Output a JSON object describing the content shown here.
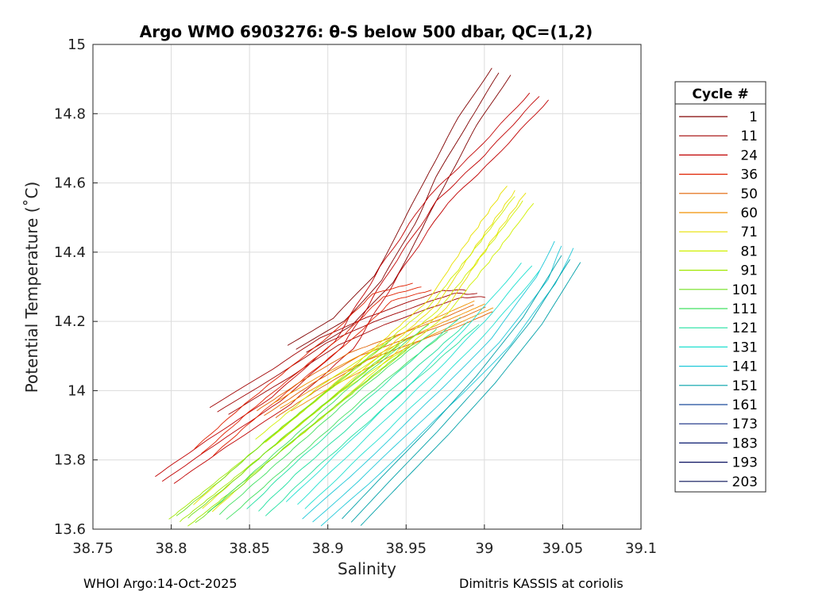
{
  "chart_data": {
    "type": "line",
    "title": "Argo WMO 6903276: θ-S below 500 dbar,  QC=(1,2)",
    "xlabel": "Salinity",
    "ylabel": "Potential Temperature (˚C)",
    "xlim": [
      38.75,
      39.1
    ],
    "ylim": [
      13.6,
      15.0
    ],
    "xticks": [
      "38.75",
      "38.8",
      "38.85",
      "38.9",
      "38.95",
      "39",
      "39.05",
      "39.1"
    ],
    "yticks": [
      "13.6",
      "13.8",
      "14",
      "14.2",
      "14.4",
      "14.6",
      "14.8",
      "15"
    ],
    "grid": true,
    "legend_title": "Cycle #",
    "legend_position": "right-outside",
    "series": [
      {
        "name": "1",
        "color": "#800000",
        "x": [
          38.88,
          38.91,
          38.935,
          38.955,
          38.97,
          38.99,
          39.01
        ],
        "y": [
          14.12,
          14.2,
          14.32,
          14.48,
          14.62,
          14.78,
          14.92
        ]
      },
      {
        "name": "11",
        "color": "#a00000",
        "x": [
          38.83,
          38.87,
          38.9,
          38.93,
          38.96,
          38.98,
          38.995
        ],
        "y": [
          13.94,
          14.05,
          14.14,
          14.2,
          14.25,
          14.28,
          14.28
        ]
      },
      {
        "name": "24",
        "color": "#c00000",
        "x": [
          38.795,
          38.83,
          38.87,
          38.91,
          38.94,
          38.97,
          39.0,
          39.035
        ],
        "y": [
          13.74,
          13.85,
          13.97,
          14.13,
          14.35,
          14.55,
          14.68,
          14.85
        ]
      },
      {
        "name": "36",
        "color": "#e02000",
        "x": [
          38.82,
          38.85,
          38.88,
          38.91,
          38.935,
          38.96
        ],
        "y": [
          13.82,
          13.94,
          14.05,
          14.16,
          14.27,
          14.3
        ]
      },
      {
        "name": "50",
        "color": "#e06000",
        "x": [
          38.86,
          38.89,
          38.92,
          38.95,
          38.98,
          39.0
        ],
        "y": [
          13.93,
          14.02,
          14.1,
          14.15,
          14.2,
          14.24
        ]
      },
      {
        "name": "60",
        "color": "#f09000",
        "x": [
          38.87,
          38.9,
          38.93,
          38.96,
          38.985,
          39.0
        ],
        "y": [
          13.95,
          14.03,
          14.1,
          14.17,
          14.22,
          14.25
        ]
      },
      {
        "name": "71",
        "color": "#e8e000",
        "x": [
          38.82,
          38.86,
          38.9,
          38.94,
          38.97,
          38.995,
          39.02
        ],
        "y": [
          13.66,
          13.82,
          13.97,
          14.13,
          14.25,
          14.42,
          14.58
        ]
      },
      {
        "name": "81",
        "color": "#d0f000",
        "x": [
          38.86,
          38.9,
          38.94,
          38.97,
          39.0,
          39.025
        ],
        "y": [
          13.85,
          14.0,
          14.12,
          14.23,
          14.4,
          14.55
        ]
      },
      {
        "name": "91",
        "color": "#a0e800",
        "x": [
          38.805,
          38.83,
          38.86,
          38.89,
          38.92,
          38.945
        ],
        "y": [
          13.62,
          13.71,
          13.82,
          13.93,
          14.04,
          14.13
        ]
      },
      {
        "name": "101",
        "color": "#70e020",
        "x": [
          38.81,
          38.84,
          38.87,
          38.9,
          38.93,
          38.95
        ],
        "y": [
          13.63,
          13.74,
          13.86,
          13.97,
          14.08,
          14.15
        ]
      },
      {
        "name": "111",
        "color": "#40e060",
        "x": [
          38.83,
          38.86,
          38.89,
          38.92,
          38.95,
          38.97
        ],
        "y": [
          13.64,
          13.76,
          13.88,
          14.0,
          14.11,
          14.18
        ]
      },
      {
        "name": "121",
        "color": "#20e0a0",
        "x": [
          38.855,
          38.88,
          38.91,
          38.94,
          38.97,
          38.99
        ],
        "y": [
          13.65,
          13.76,
          13.88,
          14.0,
          14.12,
          14.2
        ]
      },
      {
        "name": "131",
        "color": "#20e0d0",
        "x": [
          38.88,
          38.91,
          38.94,
          38.97,
          39.0,
          39.03
        ],
        "y": [
          13.67,
          13.8,
          13.93,
          14.06,
          14.2,
          14.36
        ]
      },
      {
        "name": "141",
        "color": "#20c8d8",
        "x": [
          38.89,
          38.92,
          38.95,
          38.98,
          39.01,
          39.04,
          39.05
        ],
        "y": [
          13.62,
          13.74,
          13.87,
          14.0,
          14.14,
          14.32,
          14.42
        ]
      },
      {
        "name": "151",
        "color": "#00a0a8",
        "x": [
          38.915,
          38.94,
          38.97,
          39.0,
          39.03,
          39.055
        ],
        "y": [
          13.62,
          13.74,
          13.88,
          14.03,
          14.2,
          14.38
        ]
      },
      {
        "name": "161",
        "color": "#1a4a9a",
        "x": [],
        "y": []
      },
      {
        "name": "173",
        "color": "#102a80",
        "x": [],
        "y": []
      },
      {
        "name": "183",
        "color": "#0a1a70",
        "x": [],
        "y": []
      },
      {
        "name": "193",
        "color": "#0a1060",
        "x": [],
        "y": []
      },
      {
        "name": "203",
        "color": "#081058",
        "x": [],
        "y": []
      }
    ]
  },
  "footer": {
    "left": "WHOI Argo:14-Oct-2025",
    "right": "Dimitris KASSIS at coriolis"
  }
}
